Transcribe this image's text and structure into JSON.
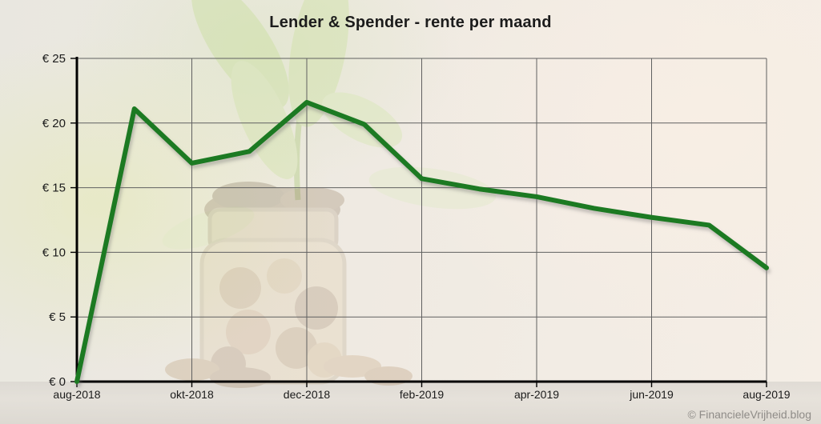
{
  "title": "Lender & Spender - rente per maand",
  "watermark": "© FinancieleVrijheid.blog",
  "colors": {
    "line": "#1b7a24",
    "grid": "#606060",
    "axis": "#000000",
    "title_text": "#1c1c1c",
    "watermark_text": "#8f8c88",
    "background": "#efe9e2",
    "table_strip": "#d9d5cf"
  },
  "chart_data": {
    "type": "line",
    "title": "Lender & Spender - rente per maand",
    "series_name": "rente per maand",
    "x": [
      "aug-2018",
      "sep-2018",
      "okt-2018",
      "nov-2018",
      "dec-2018",
      "jan-2019",
      "feb-2019",
      "mrt-2019",
      "apr-2019",
      "mei-2019",
      "jun-2019",
      "jul-2019",
      "aug-2019"
    ],
    "values": [
      0,
      21.1,
      16.9,
      17.8,
      21.6,
      19.9,
      15.7,
      14.9,
      14.3,
      13.4,
      12.7,
      12.1,
      8.8
    ],
    "x_tick_indices": [
      0,
      2,
      4,
      6,
      8,
      10,
      12
    ],
    "x_tick_labels": [
      "aug-2018",
      "okt-2018",
      "dec-2018",
      "feb-2019",
      "apr-2019",
      "jun-2019",
      "aug-2019"
    ],
    "y_ticks": [
      {
        "value": 0,
        "label": "€ 0"
      },
      {
        "value": 5,
        "label": "€ 5"
      },
      {
        "value": 10,
        "label": "€ 10"
      },
      {
        "value": 15,
        "label": "€ 15"
      },
      {
        "value": 20,
        "label": "€ 20"
      },
      {
        "value": 25,
        "label": "€ 25"
      }
    ],
    "ylim": [
      0,
      25
    ],
    "grid": true,
    "legend": false,
    "line_color": "#1b7a24",
    "currency": "€"
  }
}
